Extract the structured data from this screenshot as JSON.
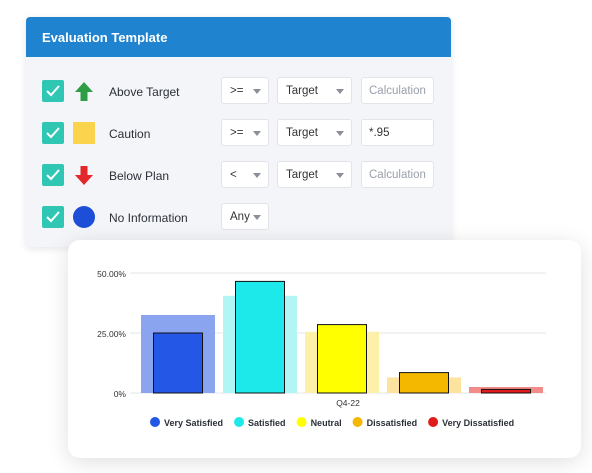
{
  "panel": {
    "title": "Evaluation Template",
    "rows": [
      {
        "label": "Above Target",
        "symbol": "arrow-up-icon",
        "color": "#2e9e44",
        "operator": ">=",
        "ref": "Target",
        "calc_value": "",
        "calc_placeholder": "Calculation",
        "checked": true
      },
      {
        "label": "Caution",
        "symbol": "square-icon",
        "color": "#fcd34d",
        "operator": ">=",
        "ref": "Target",
        "calc_value": "*.95",
        "calc_placeholder": "Calculation",
        "checked": true
      },
      {
        "label": "Below Plan",
        "symbol": "arrow-down-icon",
        "color": "#e2282b",
        "operator": "<",
        "ref": "Target",
        "calc_value": "",
        "calc_placeholder": "Calculation",
        "checked": true
      },
      {
        "label": "No Information",
        "symbol": "circle-icon",
        "color": "#1d4ed8",
        "operator": "Any",
        "checked": true
      }
    ]
  },
  "chart_data": {
    "type": "bar",
    "categories": [
      "Q4-22"
    ],
    "y_ticks": [
      "0%",
      "25.00%",
      "50.00%"
    ],
    "ylim": [
      0,
      50
    ],
    "series": [
      {
        "name": "Very Satisfied",
        "value": 25,
        "background_value": 32.5,
        "color": "#2457e6",
        "bg_color": "#8aa4f0"
      },
      {
        "name": "Satisfied",
        "value": 46.5,
        "background_value": 40.5,
        "color": "#1de9ea",
        "bg_color": "#b1f5f4"
      },
      {
        "name": "Neutral",
        "value": 28.5,
        "background_value": 25.5,
        "color": "#ffff00",
        "bg_color": "#fdf0a8"
      },
      {
        "name": "Dissatisfied",
        "value": 8.5,
        "background_value": 6.5,
        "color": "#f5b800",
        "bg_color": "#fce3a0"
      },
      {
        "name": "Very Dissatisfied",
        "value": 1.5,
        "background_value": 2.5,
        "color": "#e01b1b",
        "bg_color": "#f48b8b"
      }
    ]
  }
}
